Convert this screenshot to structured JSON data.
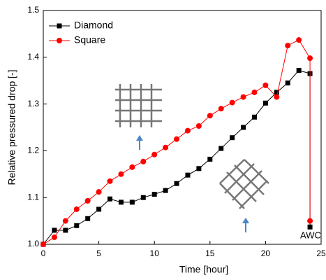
{
  "chart_data": {
    "type": "line",
    "x_label": "Time [hour]",
    "y_label": "Relative pressured drop [-]",
    "annotations": [
      "AWC"
    ],
    "x": [
      0,
      1,
      2,
      3,
      4,
      5,
      6,
      7,
      8,
      9,
      10,
      11,
      12,
      13,
      14,
      15,
      16,
      17,
      18,
      19,
      20,
      21,
      22,
      23,
      24,
      24
    ],
    "series": [
      {
        "name": "Diamond",
        "color": "#000000",
        "marker": "square",
        "values": [
          1.0,
          1.03,
          1.03,
          1.04,
          1.055,
          1.075,
          1.097,
          1.09,
          1.09,
          1.1,
          1.107,
          1.115,
          1.13,
          1.148,
          1.162,
          1.182,
          1.205,
          1.228,
          1.25,
          1.272,
          1.302,
          1.325,
          1.345,
          1.372,
          1.365,
          1.037
        ]
      },
      {
        "name": "Square",
        "color": "#ff0000",
        "marker": "circle",
        "values": [
          1.0,
          1.015,
          1.05,
          1.075,
          1.093,
          1.112,
          1.135,
          1.15,
          1.165,
          1.177,
          1.192,
          1.207,
          1.225,
          1.243,
          1.253,
          1.275,
          1.29,
          1.303,
          1.315,
          1.325,
          1.34,
          1.315,
          1.425,
          1.437,
          1.398,
          1.05
        ]
      }
    ],
    "xlim": [
      0,
      25
    ],
    "xticks": [
      0,
      5,
      10,
      15,
      20,
      25
    ],
    "ylim": [
      1,
      1.5
    ],
    "yticks": [
      {
        "value": 1,
        "label": "1.0"
      },
      1.1,
      1.2,
      1.3,
      1.4,
      1.5
    ],
    "legend": "upper-left"
  }
}
